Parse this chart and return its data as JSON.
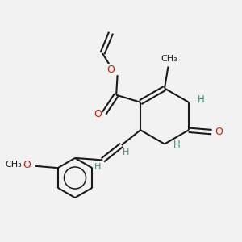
{
  "bg_color": "#f2f2f2",
  "bond_color": "#1a1a1a",
  "bond_width": 1.5,
  "N_color": "#2244cc",
  "O_color": "#cc2200",
  "H_color": "#448877",
  "C_color": "#1a1a1a",
  "figsize": [
    3.0,
    3.0
  ],
  "dpi": 100,
  "xlim": [
    0,
    10
  ],
  "ylim": [
    0,
    10
  ]
}
